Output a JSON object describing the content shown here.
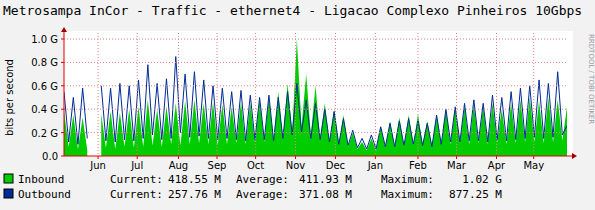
{
  "chart_data": {
    "type": "area",
    "title": "Metrosampa InCor - Traffic - ethernet4 - Ligacao Complexo Pinheiros 10Gbps",
    "y_label": "bits per second",
    "watermark": "RRDTOOL / TOBI OETIKER",
    "grid": true,
    "xlim": [
      0,
      378
    ],
    "xticks": [
      {
        "value": 25.6,
        "label": "Jun"
      },
      {
        "value": 55,
        "label": "Jul"
      },
      {
        "value": 86,
        "label": "Aug"
      },
      {
        "value": 115,
        "label": "Sep"
      },
      {
        "value": 144,
        "label": "Oct"
      },
      {
        "value": 174,
        "label": "Nov"
      },
      {
        "value": 204,
        "label": "Dec"
      },
      {
        "value": 234,
        "label": "Jan"
      },
      {
        "value": 266,
        "label": "Feb"
      },
      {
        "value": 295,
        "label": "Mar"
      },
      {
        "value": 325,
        "label": "Apr"
      },
      {
        "value": 353,
        "label": "May"
      }
    ],
    "ylim": [
      0,
      1.0
    ],
    "yticks": [
      {
        "value": 0,
        "label": "0.0"
      },
      {
        "value": 0.2,
        "label": "0.2 G"
      },
      {
        "value": 0.4,
        "label": "0.4 G"
      },
      {
        "value": 0.6,
        "label": "0.6 G"
      },
      {
        "value": 0.8,
        "label": "0.8 G"
      },
      {
        "value": 1.0,
        "label": "1.0 G"
      }
    ],
    "x": [
      0,
      3.5,
      7,
      10.5,
      14,
      17.5,
      21,
      24.5,
      28,
      31.5,
      35,
      38.5,
      42,
      45.5,
      49,
      52.5,
      56,
      59.5,
      63,
      66.5,
      70,
      73.5,
      77,
      80.5,
      84,
      87.5,
      91,
      94.5,
      98,
      101.5,
      105,
      108.5,
      112,
      115.5,
      119,
      122.5,
      126,
      129.5,
      133,
      136.5,
      140,
      143.5,
      147,
      150.5,
      154,
      157.5,
      161,
      164.5,
      168,
      171.5,
      175,
      178.5,
      182,
      185.5,
      189,
      192.5,
      196,
      199.5,
      203,
      206.5,
      210,
      213.5,
      217,
      220.5,
      224,
      227.5,
      231,
      234.5,
      238,
      241.5,
      245,
      248.5,
      252,
      255.5,
      259,
      262.5,
      266,
      269.5,
      273,
      276.5,
      280,
      283.5,
      287,
      290.5,
      294,
      297.5,
      301,
      304.5,
      308,
      311.5,
      315,
      318.5,
      322,
      325.5,
      329,
      332.5,
      336,
      339.5,
      343,
      346.5,
      350,
      353.5,
      357,
      360.5,
      364,
      367.5,
      371,
      374.5,
      378
    ],
    "series": [
      {
        "name": "Inbound",
        "type": "area",
        "color": "#00cc00",
        "stats": [
          {
            "label": "Current:",
            "value": "418.55 M"
          },
          {
            "label": "Average:",
            "value": "411.93 M"
          },
          {
            "label": "Maximum:",
            "value": "1.02 G"
          }
        ],
        "values": [
          0.38,
          0.08,
          0.35,
          0.06,
          0.33,
          0.05,
          null,
          null,
          0.36,
          0.07,
          0.38,
          0.06,
          0.37,
          0.08,
          0.4,
          0.07,
          0.42,
          0.08,
          0.48,
          0.09,
          0.4,
          0.08,
          0.42,
          0.1,
          0.45,
          0.09,
          0.47,
          0.1,
          0.48,
          0.11,
          0.45,
          0.1,
          0.46,
          0.09,
          0.44,
          0.1,
          0.42,
          0.11,
          0.46,
          0.1,
          0.45,
          0.12,
          0.48,
          0.12,
          0.5,
          0.13,
          0.55,
          0.14,
          0.62,
          0.2,
          1.0,
          0.25,
          0.7,
          0.18,
          0.6,
          0.15,
          0.45,
          0.12,
          0.4,
          0.1,
          0.35,
          0.08,
          0.2,
          0.06,
          0.12,
          0.05,
          0.15,
          0.05,
          0.25,
          0.07,
          0.3,
          0.08,
          0.33,
          0.08,
          0.35,
          0.09,
          0.36,
          0.1,
          0.3,
          0.08,
          0.35,
          0.1,
          0.4,
          0.1,
          0.42,
          0.11,
          0.43,
          0.1,
          0.44,
          0.11,
          0.42,
          0.1,
          0.45,
          0.12,
          0.4,
          0.1,
          0.45,
          0.11,
          0.48,
          0.12,
          0.5,
          0.12,
          0.47,
          0.11,
          0.5,
          0.12,
          0.48,
          0.13,
          0.42
        ]
      },
      {
        "name": "Outbound",
        "type": "line",
        "color": "#002a97",
        "stats": [
          {
            "label": "Current:",
            "value": "257.76 M"
          },
          {
            "label": "Average:",
            "value": "371.08 M"
          },
          {
            "label": "Maximum:",
            "value": "877.25 M"
          }
        ],
        "values": [
          0.55,
          0.12,
          0.5,
          0.1,
          0.58,
          0.15,
          null,
          null,
          0.6,
          0.13,
          0.58,
          0.12,
          0.62,
          0.14,
          0.6,
          0.13,
          0.65,
          0.15,
          0.78,
          0.18,
          0.62,
          0.14,
          0.66,
          0.15,
          0.85,
          0.2,
          0.7,
          0.16,
          0.72,
          0.17,
          0.65,
          0.15,
          0.6,
          0.14,
          0.58,
          0.15,
          0.55,
          0.14,
          0.56,
          0.13,
          0.52,
          0.14,
          0.5,
          0.14,
          0.52,
          0.13,
          0.5,
          0.15,
          0.55,
          0.18,
          0.62,
          0.2,
          0.48,
          0.15,
          0.45,
          0.14,
          0.4,
          0.12,
          0.38,
          0.1,
          0.32,
          0.09,
          0.22,
          0.07,
          0.15,
          0.06,
          0.18,
          0.06,
          0.25,
          0.08,
          0.28,
          0.08,
          0.3,
          0.09,
          0.32,
          0.1,
          0.3,
          0.09,
          0.28,
          0.08,
          0.35,
          0.1,
          0.4,
          0.12,
          0.42,
          0.12,
          0.45,
          0.13,
          0.48,
          0.13,
          0.45,
          0.12,
          0.52,
          0.14,
          0.5,
          0.13,
          0.55,
          0.14,
          0.58,
          0.15,
          0.6,
          0.16,
          0.65,
          0.15,
          0.62,
          0.16,
          0.72,
          0.18,
          0.26
        ]
      }
    ]
  }
}
